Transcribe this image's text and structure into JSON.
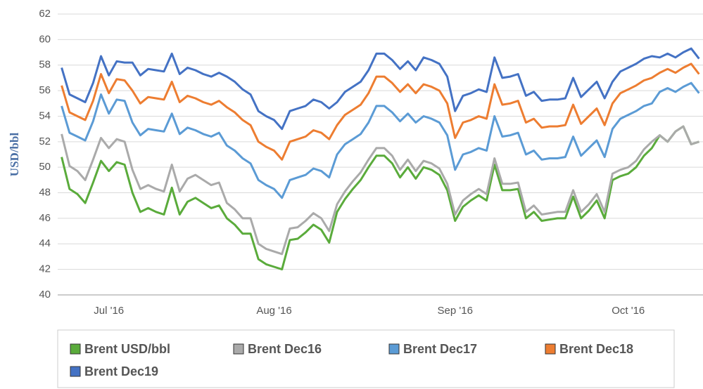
{
  "chart_data": {
    "type": "line",
    "y_label": "USD/bbl",
    "categories": [
      null,
      null,
      null,
      null,
      null,
      null,
      "Jul '16",
      null,
      null,
      null,
      null,
      null,
      null,
      null,
      null,
      null,
      null,
      null,
      null,
      null,
      null,
      null,
      null,
      null,
      null,
      null,
      null,
      "Aug '16",
      null,
      null,
      null,
      null,
      null,
      null,
      null,
      null,
      null,
      null,
      null,
      null,
      null,
      null,
      null,
      null,
      null,
      null,
      null,
      null,
      null,
      null,
      "Sep '16",
      null,
      null,
      null,
      null,
      null,
      null,
      null,
      null,
      null,
      null,
      null,
      null,
      null,
      null,
      null,
      null,
      null,
      null,
      null,
      null,
      null,
      "Oct '16",
      null,
      null,
      null,
      null,
      null,
      null,
      null,
      null,
      null
    ],
    "series": [
      {
        "name": "Brent USD/bbl",
        "color": "#5aab3b",
        "values": [
          50.8,
          48.3,
          47.9,
          47.2,
          48.8,
          50.5,
          49.7,
          50.4,
          50.2,
          48.0,
          46.5,
          46.8,
          46.5,
          46.3,
          48.4,
          46.3,
          47.3,
          47.6,
          47.2,
          46.8,
          47.0,
          46.0,
          45.5,
          44.8,
          44.8,
          42.8,
          42.4,
          42.2,
          42.0,
          44.3,
          44.4,
          44.9,
          45.5,
          45.1,
          44.1,
          46.5,
          47.5,
          48.3,
          49.0,
          50.0,
          50.9,
          50.9,
          50.3,
          49.2,
          50.0,
          49.1,
          50.0,
          49.8,
          49.4,
          48.2,
          45.8,
          46.9,
          47.4,
          47.8,
          47.4,
          50.2,
          48.2,
          48.2,
          48.3,
          46.0,
          46.5,
          45.8,
          45.9,
          46.0,
          46.0,
          47.7,
          46.0,
          46.6,
          47.4,
          46.0,
          49.0,
          49.3,
          49.5,
          50.0,
          50.9,
          51.5,
          52.5,
          52.0,
          52.8,
          53.2,
          51.8,
          52.0
        ]
      },
      {
        "name": "Brent Dec16",
        "color": "#aaaaaa",
        "values": [
          52.6,
          50.1,
          49.7,
          49.0,
          50.6,
          52.3,
          51.5,
          52.2,
          52.0,
          49.8,
          48.3,
          48.6,
          48.3,
          48.1,
          50.2,
          48.1,
          49.1,
          49.4,
          49.0,
          48.6,
          48.8,
          47.2,
          46.7,
          46.0,
          46.0,
          44.0,
          43.6,
          43.4,
          43.2,
          45.2,
          45.3,
          45.8,
          46.4,
          46.0,
          45.0,
          47.1,
          48.1,
          48.9,
          49.6,
          50.6,
          51.5,
          51.5,
          50.9,
          49.8,
          50.6,
          49.7,
          50.5,
          50.3,
          49.9,
          48.7,
          46.3,
          47.4,
          47.9,
          48.3,
          47.9,
          50.7,
          48.7,
          48.7,
          48.8,
          46.5,
          47.0,
          46.3,
          46.4,
          46.5,
          46.5,
          48.2,
          46.5,
          47.1,
          47.9,
          46.5,
          49.5,
          49.8,
          50.0,
          50.5,
          51.4,
          52.0,
          52.5,
          52.0,
          52.8,
          53.2,
          51.8,
          52.0
        ]
      },
      {
        "name": "Brent Dec17",
        "color": "#5b9bd5",
        "values": [
          54.8,
          52.7,
          52.4,
          52.1,
          53.6,
          55.7,
          54.2,
          55.3,
          55.2,
          53.5,
          52.5,
          53.0,
          52.9,
          52.8,
          54.2,
          52.6,
          53.1,
          52.9,
          52.6,
          52.4,
          52.7,
          51.7,
          51.3,
          50.7,
          50.3,
          49.0,
          48.6,
          48.3,
          47.6,
          49.0,
          49.2,
          49.4,
          49.9,
          49.7,
          49.2,
          51.0,
          51.8,
          52.2,
          52.6,
          53.5,
          54.8,
          54.8,
          54.3,
          53.6,
          54.2,
          53.5,
          54.0,
          53.8,
          53.5,
          52.5,
          49.8,
          51.0,
          51.2,
          51.5,
          51.3,
          54.0,
          52.4,
          52.5,
          52.7,
          51.0,
          51.3,
          50.6,
          50.7,
          50.7,
          50.8,
          52.4,
          50.9,
          51.5,
          52.1,
          50.8,
          53.0,
          53.8,
          54.1,
          54.4,
          54.8,
          55.0,
          55.9,
          56.2,
          55.9,
          56.3,
          56.6,
          55.8
        ]
      },
      {
        "name": "Brent Dec18",
        "color": "#ed7d31",
        "values": [
          56.4,
          54.3,
          54.0,
          53.7,
          55.2,
          57.3,
          55.8,
          56.9,
          56.8,
          56.0,
          55.0,
          55.5,
          55.4,
          55.3,
          56.7,
          55.1,
          55.6,
          55.4,
          55.1,
          54.9,
          55.2,
          54.7,
          54.3,
          53.7,
          53.3,
          52.0,
          51.6,
          51.3,
          50.6,
          52.0,
          52.2,
          52.4,
          52.9,
          52.7,
          52.2,
          53.3,
          54.1,
          54.5,
          54.9,
          55.8,
          57.1,
          57.1,
          56.6,
          55.9,
          56.5,
          55.8,
          56.5,
          56.3,
          56.0,
          55.0,
          52.3,
          53.5,
          53.7,
          54.0,
          53.8,
          56.5,
          54.9,
          55.0,
          55.2,
          53.5,
          53.8,
          53.1,
          53.2,
          53.2,
          53.3,
          54.9,
          53.4,
          54.0,
          54.6,
          53.3,
          55.0,
          55.8,
          56.1,
          56.4,
          56.8,
          57.0,
          57.4,
          57.7,
          57.4,
          57.8,
          58.1,
          57.3
        ]
      },
      {
        "name": "Brent Dec19",
        "color": "#4472c4",
        "values": [
          57.8,
          55.7,
          55.4,
          55.1,
          56.6,
          58.7,
          57.2,
          58.3,
          58.2,
          58.2,
          57.2,
          57.7,
          57.6,
          57.5,
          58.9,
          57.3,
          57.8,
          57.6,
          57.3,
          57.1,
          57.4,
          57.1,
          56.7,
          56.1,
          55.7,
          54.4,
          54.0,
          53.7,
          53.0,
          54.4,
          54.6,
          54.8,
          55.3,
          55.1,
          54.6,
          55.1,
          55.9,
          56.3,
          56.7,
          57.6,
          58.9,
          58.9,
          58.4,
          57.7,
          58.3,
          57.6,
          58.6,
          58.4,
          58.1,
          57.1,
          54.4,
          55.6,
          55.8,
          56.1,
          55.9,
          58.6,
          57.0,
          57.1,
          57.3,
          55.6,
          55.9,
          55.2,
          55.3,
          55.3,
          55.4,
          57.0,
          55.5,
          56.1,
          56.7,
          55.4,
          56.7,
          57.5,
          57.8,
          58.1,
          58.5,
          58.7,
          58.6,
          58.9,
          58.6,
          59.0,
          59.3,
          58.5
        ]
      }
    ],
    "ylim": [
      40,
      62
    ],
    "yticks": [
      40,
      42,
      44,
      46,
      48,
      50,
      52,
      54,
      56,
      58,
      60,
      62
    ],
    "grid": true,
    "legend": "bottom"
  }
}
